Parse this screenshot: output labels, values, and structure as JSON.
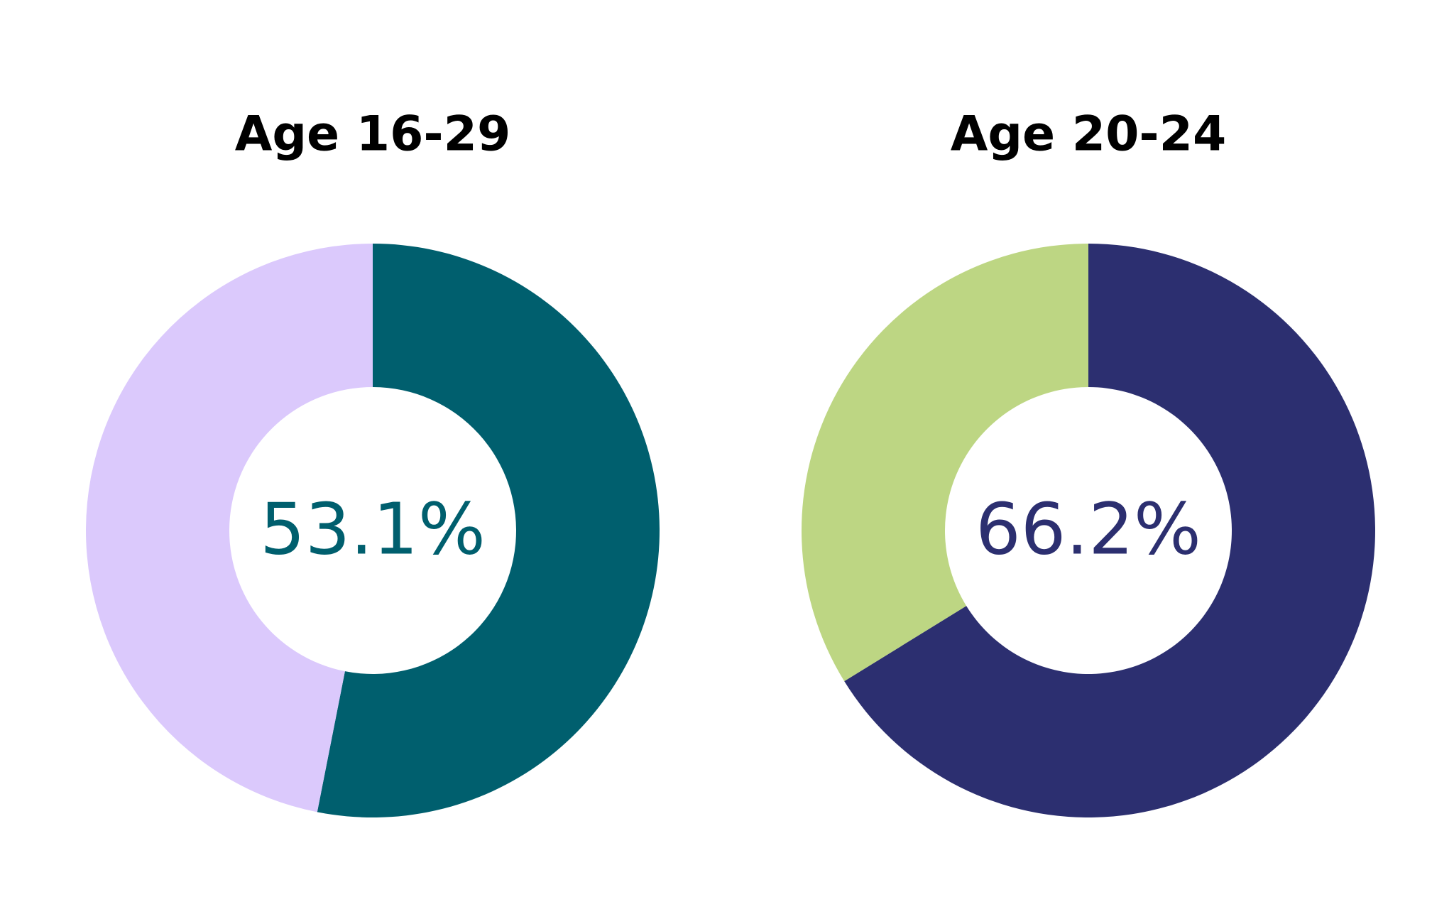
{
  "chart_data": [
    {
      "type": "donut",
      "title": "Age 16-29",
      "values": [
        53.1,
        46.9
      ],
      "value_labels": [
        "53.1%",
        null
      ],
      "colors": [
        "#005f6e",
        "#dbc9fc"
      ]
    },
    {
      "type": "donut",
      "title": "Age 20-24",
      "values": [
        66.2,
        33.8
      ],
      "value_labels": [
        "66.2%",
        null
      ],
      "colors": [
        "#2c2f70",
        "#bdd683"
      ]
    }
  ]
}
